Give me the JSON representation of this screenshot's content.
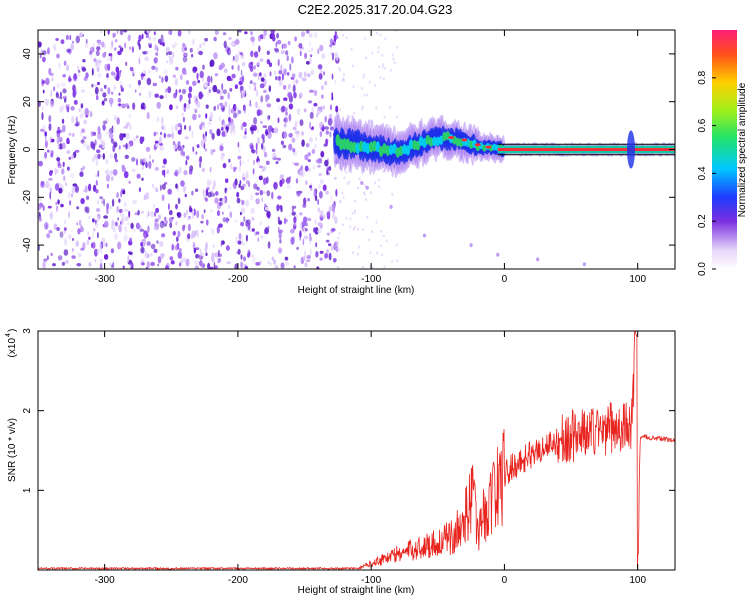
{
  "title": "C2E2.2025.317.20.04.G23",
  "chart_data": [
    {
      "type": "heatmap",
      "name": "spectrogram",
      "xlabel": "Height of straight line (km)",
      "ylabel": "Frequency (Hz)",
      "xlim": [
        -350,
        128
      ],
      "ylim": [
        -50,
        50
      ],
      "xticks": [
        -300,
        -200,
        -100,
        0,
        100
      ],
      "yticks": [
        -40,
        -20,
        0,
        20,
        40
      ],
      "colorbar": {
        "label": "Normalized spectral amplitude",
        "range": [
          0,
          1
        ],
        "ticks": [
          0.0,
          0.2,
          0.4,
          0.6,
          0.8
        ]
      },
      "noise_region_x": [
        -350,
        -125
      ],
      "tone_track": [
        {
          "x": -125,
          "y": 3
        },
        {
          "x": -110,
          "y": 2
        },
        {
          "x": -95,
          "y": 0
        },
        {
          "x": -80,
          "y": -1
        },
        {
          "x": -70,
          "y": 1
        },
        {
          "x": -60,
          "y": 3
        },
        {
          "x": -45,
          "y": 5
        },
        {
          "x": -35,
          "y": 4
        },
        {
          "x": -25,
          "y": 2
        },
        {
          "x": -15,
          "y": 1
        },
        {
          "x": 0,
          "y": 0
        },
        {
          "x": 50,
          "y": 0
        },
        {
          "x": 95,
          "y": 0
        },
        {
          "x": 128,
          "y": 0
        }
      ]
    },
    {
      "type": "line",
      "name": "snr",
      "xlabel": "Height of straight line (km)",
      "ylabel": "SNR (10 * v/v)",
      "yscale_label": "(x10",
      "yscale_exp": "4",
      "xlim": [
        -350,
        128
      ],
      "ylim": [
        0,
        3
      ],
      "xticks": [
        -300,
        -200,
        -100,
        0,
        100
      ],
      "yticks": [
        1,
        2,
        3
      ],
      "series": [
        {
          "name": "SNR",
          "color": "#e8231e",
          "x": [
            -350,
            -200,
            -110,
            -105,
            -90,
            -70,
            -50,
            -40,
            -30,
            -25,
            -20,
            -10,
            0,
            10,
            20,
            30,
            40,
            50,
            60,
            70,
            80,
            90,
            95,
            98,
            100,
            102,
            110,
            128
          ],
          "y": [
            0.02,
            0.02,
            0.02,
            0.05,
            0.15,
            0.25,
            0.35,
            0.4,
            0.6,
            1.0,
            0.5,
            0.9,
            1.2,
            1.35,
            1.45,
            1.55,
            1.62,
            1.68,
            1.72,
            1.75,
            1.78,
            1.8,
            1.82,
            2.4,
            0.3,
            1.68,
            1.66,
            1.63
          ]
        }
      ]
    }
  ]
}
